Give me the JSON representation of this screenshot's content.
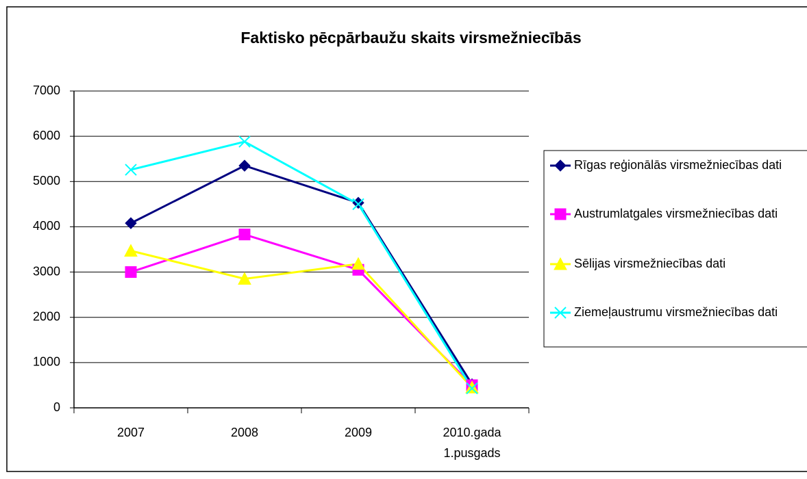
{
  "chart_data": {
    "type": "line",
    "title": "Faktisko pēcpārbaužu skaits virsmežniecībās",
    "categories": [
      "2007",
      "2008",
      "2009",
      "2010.gada 1.pusgads"
    ],
    "series": [
      {
        "name": "Rīgas reģionālās virsmežniecības dati",
        "color": "#000080",
        "marker": "diamond",
        "values": [
          4080,
          5350,
          4530,
          520
        ]
      },
      {
        "name": "Austrumlatgales virsmežniecības dati",
        "color": "#FF00FF",
        "marker": "square",
        "values": [
          3000,
          3830,
          3050,
          500
        ]
      },
      {
        "name": "Sēlijas virsmežniecības dati",
        "color": "#FFFF00",
        "marker": "triangle",
        "values": [
          3470,
          2850,
          3180,
          450
        ]
      },
      {
        "name": "Ziemeļaustrumu virsmežniecības dati",
        "color": "#00FFFF",
        "marker": "x",
        "values": [
          5260,
          5880,
          4500,
          430
        ]
      }
    ],
    "ylim": [
      0,
      7000
    ],
    "yticks": [
      0,
      1000,
      2000,
      3000,
      4000,
      5000,
      6000,
      7000
    ],
    "grid": true,
    "legend": "right"
  }
}
